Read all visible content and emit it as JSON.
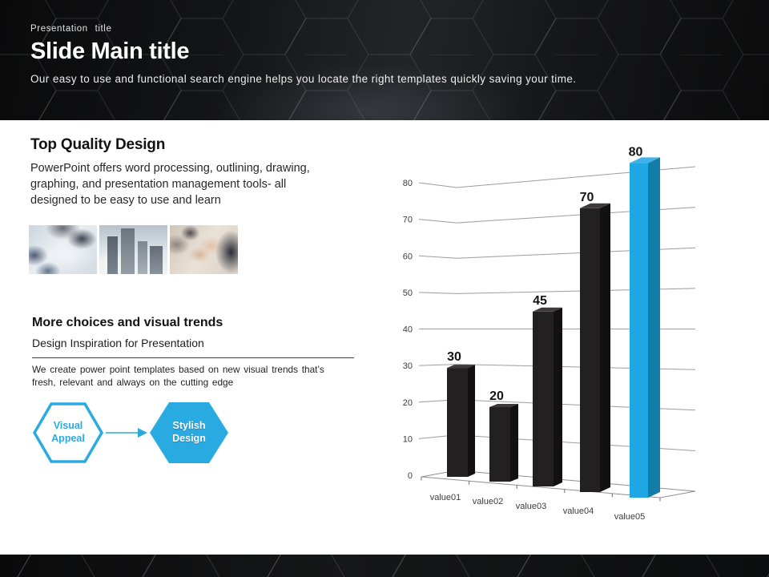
{
  "header": {
    "eyebrow": "Presentation title",
    "title": "Slide Main title",
    "subtitle": "Our easy to use and functional search engine helps you locate the right templates quickly saving your time."
  },
  "sections": {
    "top_quality": {
      "heading": "Top Quality Design",
      "body": "PowerPoint offers word processing, outlining, drawing, graphing, and presentation management tools- all designed to be easy to use and learn"
    },
    "photos": [
      "business-meeting",
      "city-skyline",
      "applause"
    ],
    "more_choices": {
      "heading": "More choices and visual trends",
      "subheading": "Design Inspiration for Presentation",
      "body": "We create power point templates based on new visual trends that’s fresh, relevant and always on the cutting edge"
    },
    "diagram": {
      "source_label": "Visual Appeal",
      "target_label": "Stylish Design",
      "accent_color": "#29ABE2"
    }
  },
  "chart_data": {
    "type": "bar",
    "style": "3d-perspective-column",
    "categories": [
      "value01",
      "value02",
      "value03",
      "value04",
      "value05"
    ],
    "values": [
      30,
      20,
      45,
      70,
      80
    ],
    "data_labels": [
      "30",
      "20",
      "45",
      "70",
      "80"
    ],
    "y_ticks": [
      0,
      10,
      20,
      30,
      40,
      50,
      60,
      70,
      80
    ],
    "ylim": [
      0,
      80
    ],
    "grid": true,
    "legend": "none",
    "title": "",
    "xlabel": "",
    "ylabel": "",
    "highlight_index": 4,
    "bar_faces": {
      "front": "#232021",
      "side": "#121011",
      "top": "#3e3a3b"
    },
    "highlight_faces": {
      "front": "#1FA7E3",
      "side": "#137CA8",
      "top": "#41B2E7"
    },
    "gridline_color": "#9d9d9d",
    "axis_label_color": "#3c3c3c",
    "data_label_color": "#141414"
  }
}
